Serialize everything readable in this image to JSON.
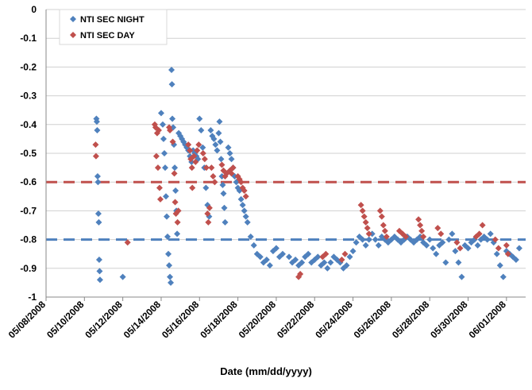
{
  "chart_data": {
    "type": "scatter",
    "title": "",
    "xlabel": "Date (mm/dd/yyyy)",
    "ylabel": "",
    "x_ticks": [
      "05/08/2008",
      "05/10/2008",
      "05/12/2008",
      "05/14/2008",
      "05/16/2008",
      "05/18/2008",
      "05/20/2008",
      "05/22/2008",
      "05/24/2008",
      "05/26/2008",
      "05/28/2008",
      "05/30/2008",
      "06/01/2008"
    ],
    "xlim": [
      "2008-05-08",
      "2008-06-02"
    ],
    "y_ticks": [
      "0",
      "-0.1",
      "-0.2",
      "-0.3",
      "-0.4",
      "-0.5",
      "-0.6",
      "-0.7",
      "-0.8",
      "-0.9",
      "-1"
    ],
    "ylim": [
      -1,
      0
    ],
    "grid": "horizontal",
    "legend_position": "top-left",
    "reference_lines": [
      {
        "y": -0.6,
        "color": "#c0504d",
        "style": "dashed"
      },
      {
        "y": -0.8,
        "color": "#4f81bd",
        "style": "dashed"
      }
    ],
    "series": [
      {
        "name": "NTI SEC NIGHT",
        "color": "#4f81bd",
        "marker": "diamond",
        "points": [
          [
            "2008-05-10T15:00",
            -0.38
          ],
          [
            "2008-05-10T15:30",
            -0.39
          ],
          [
            "2008-05-10T16:00",
            -0.42
          ],
          [
            "2008-05-10T16:30",
            -0.58
          ],
          [
            "2008-05-10T17:00",
            -0.6
          ],
          [
            "2008-05-10T17:30",
            -0.71
          ],
          [
            "2008-05-10T18:00",
            -0.74
          ],
          [
            "2008-05-10T18:30",
            -0.87
          ],
          [
            "2008-05-10T19:00",
            -0.91
          ],
          [
            "2008-05-10T19:30",
            -0.94
          ],
          [
            "2008-05-12T00:00",
            -0.93
          ],
          [
            "2008-05-14T00:00",
            -0.36
          ],
          [
            "2008-05-14T02:00",
            -0.4
          ],
          [
            "2008-05-14T03:00",
            -0.45
          ],
          [
            "2008-05-14T04:00",
            -0.5
          ],
          [
            "2008-05-14T05:00",
            -0.55
          ],
          [
            "2008-05-14T06:00",
            -0.65
          ],
          [
            "2008-05-14T07:00",
            -0.72
          ],
          [
            "2008-05-14T08:00",
            -0.79
          ],
          [
            "2008-05-14T09:00",
            -0.85
          ],
          [
            "2008-05-14T10:00",
            -0.89
          ],
          [
            "2008-05-14T11:00",
            -0.93
          ],
          [
            "2008-05-14T12:00",
            -0.95
          ],
          [
            "2008-05-14T13:00",
            -0.21
          ],
          [
            "2008-05-14T13:30",
            -0.26
          ],
          [
            "2008-05-14T14:00",
            -0.38
          ],
          [
            "2008-05-14T15:00",
            -0.41
          ],
          [
            "2008-05-14T16:00",
            -0.47
          ],
          [
            "2008-05-14T17:00",
            -0.55
          ],
          [
            "2008-05-14T18:00",
            -0.63
          ],
          [
            "2008-05-14T19:00",
            -0.7
          ],
          [
            "2008-05-14T20:00",
            -0.78
          ],
          [
            "2008-05-14T22:00",
            -0.43
          ],
          [
            "2008-05-15T00:00",
            -0.44
          ],
          [
            "2008-05-15T02:00",
            -0.45
          ],
          [
            "2008-05-15T04:00",
            -0.46
          ],
          [
            "2008-05-15T06:00",
            -0.47
          ],
          [
            "2008-05-15T08:00",
            -0.48
          ],
          [
            "2008-05-15T10:00",
            -0.49
          ],
          [
            "2008-05-15T12:00",
            -0.51
          ],
          [
            "2008-05-15T14:00",
            -0.53
          ],
          [
            "2008-05-15T16:00",
            -0.49
          ],
          [
            "2008-05-15T18:00",
            -0.5
          ],
          [
            "2008-05-15T20:00",
            -0.51
          ],
          [
            "2008-05-15T22:00",
            -0.52
          ],
          [
            "2008-05-16T00:00",
            -0.38
          ],
          [
            "2008-05-16T02:00",
            -0.42
          ],
          [
            "2008-05-16T04:00",
            -0.48
          ],
          [
            "2008-05-16T06:00",
            -0.55
          ],
          [
            "2008-05-16T08:00",
            -0.62
          ],
          [
            "2008-05-16T10:00",
            -0.68
          ],
          [
            "2008-05-16T12:00",
            -0.72
          ],
          [
            "2008-05-16T14:00",
            -0.42
          ],
          [
            "2008-05-16T16:00",
            -0.44
          ],
          [
            "2008-05-16T18:00",
            -0.45
          ],
          [
            "2008-05-16T20:00",
            -0.47
          ],
          [
            "2008-05-16T22:00",
            -0.49
          ],
          [
            "2008-05-17T00:00",
            -0.43
          ],
          [
            "2008-05-17T01:00",
            -0.39
          ],
          [
            "2008-05-17T02:00",
            -0.46
          ],
          [
            "2008-05-17T03:00",
            -0.52
          ],
          [
            "2008-05-17T04:00",
            -0.58
          ],
          [
            "2008-05-17T05:00",
            -0.61
          ],
          [
            "2008-05-17T06:00",
            -0.64
          ],
          [
            "2008-05-17T07:00",
            -0.69
          ],
          [
            "2008-05-17T08:00",
            -0.74
          ],
          [
            "2008-05-17T12:00",
            -0.48
          ],
          [
            "2008-05-17T14:00",
            -0.5
          ],
          [
            "2008-05-17T16:00",
            -0.52
          ],
          [
            "2008-05-17T18:00",
            -0.55
          ],
          [
            "2008-05-17T20:00",
            -0.58
          ],
          [
            "2008-05-17T22:00",
            -0.6
          ],
          [
            "2008-05-18T00:00",
            -0.62
          ],
          [
            "2008-05-18T02:00",
            -0.63
          ],
          [
            "2008-05-18T04:00",
            -0.66
          ],
          [
            "2008-05-18T06:00",
            -0.68
          ],
          [
            "2008-05-18T08:00",
            -0.7
          ],
          [
            "2008-05-18T10:00",
            -0.72
          ],
          [
            "2008-05-18T12:00",
            -0.74
          ],
          [
            "2008-05-18T16:00",
            -0.79
          ],
          [
            "2008-05-18T20:00",
            -0.82
          ],
          [
            "2008-05-19T00:00",
            -0.85
          ],
          [
            "2008-05-19T04:00",
            -0.86
          ],
          [
            "2008-05-19T08:00",
            -0.88
          ],
          [
            "2008-05-19T12:00",
            -0.87
          ],
          [
            "2008-05-19T16:00",
            -0.89
          ],
          [
            "2008-05-19T20:00",
            -0.84
          ],
          [
            "2008-05-20T00:00",
            -0.83
          ],
          [
            "2008-05-20T04:00",
            -0.86
          ],
          [
            "2008-05-20T08:00",
            -0.85
          ],
          [
            "2008-05-20T16:00",
            -0.86
          ],
          [
            "2008-05-20T20:00",
            -0.88
          ],
          [
            "2008-05-21T00:00",
            -0.87
          ],
          [
            "2008-05-21T04:00",
            -0.89
          ],
          [
            "2008-05-21T08:00",
            -0.88
          ],
          [
            "2008-05-21T12:00",
            -0.86
          ],
          [
            "2008-05-21T16:00",
            -0.85
          ],
          [
            "2008-05-21T20:00",
            -0.88
          ],
          [
            "2008-05-22T00:00",
            -0.87
          ],
          [
            "2008-05-22T04:00",
            -0.86
          ],
          [
            "2008-05-22T08:00",
            -0.89
          ],
          [
            "2008-05-22T12:00",
            -0.88
          ],
          [
            "2008-05-22T16:00",
            -0.9
          ],
          [
            "2008-05-22T20:00",
            -0.88
          ],
          [
            "2008-05-23T00:00",
            -0.86
          ],
          [
            "2008-05-23T04:00",
            -0.87
          ],
          [
            "2008-05-23T08:00",
            -0.88
          ],
          [
            "2008-05-23T12:00",
            -0.9
          ],
          [
            "2008-05-23T16:00",
            -0.89
          ],
          [
            "2008-05-23T20:00",
            -0.86
          ],
          [
            "2008-05-24T00:00",
            -0.84
          ],
          [
            "2008-05-24T04:00",
            -0.81
          ],
          [
            "2008-05-24T08:00",
            -0.79
          ],
          [
            "2008-05-24T12:00",
            -0.8
          ],
          [
            "2008-05-24T16:00",
            -0.82
          ],
          [
            "2008-05-24T20:00",
            -0.8
          ],
          [
            "2008-05-25T00:00",
            -0.78
          ],
          [
            "2008-05-25T04:00",
            -0.8
          ],
          [
            "2008-05-25T08:00",
            -0.82
          ],
          [
            "2008-05-25T12:00",
            -0.79
          ],
          [
            "2008-05-25T16:00",
            -0.8
          ],
          [
            "2008-05-25T20:00",
            -0.81
          ],
          [
            "2008-05-26T00:00",
            -0.8
          ],
          [
            "2008-05-26T04:00",
            -0.79
          ],
          [
            "2008-05-26T08:00",
            -0.8
          ],
          [
            "2008-05-26T12:00",
            -0.81
          ],
          [
            "2008-05-26T16:00",
            -0.8
          ],
          [
            "2008-05-26T20:00",
            -0.79
          ],
          [
            "2008-05-27T00:00",
            -0.8
          ],
          [
            "2008-05-27T04:00",
            -0.81
          ],
          [
            "2008-05-27T08:00",
            -0.8
          ],
          [
            "2008-05-27T12:00",
            -0.79
          ],
          [
            "2008-05-27T16:00",
            -0.81
          ],
          [
            "2008-05-27T20:00",
            -0.82
          ],
          [
            "2008-05-28T00:00",
            -0.8
          ],
          [
            "2008-05-28T04:00",
            -0.83
          ],
          [
            "2008-05-28T08:00",
            -0.85
          ],
          [
            "2008-05-28T12:00",
            -0.82
          ],
          [
            "2008-05-28T16:00",
            -0.81
          ],
          [
            "2008-05-28T20:00",
            -0.88
          ],
          [
            "2008-05-29T00:00",
            -0.8
          ],
          [
            "2008-05-29T04:00",
            -0.78
          ],
          [
            "2008-05-29T08:00",
            -0.84
          ],
          [
            "2008-05-29T12:00",
            -0.88
          ],
          [
            "2008-05-29T16:00",
            -0.93
          ],
          [
            "2008-05-29T20:00",
            -0.82
          ],
          [
            "2008-05-30T00:00",
            -0.83
          ],
          [
            "2008-05-30T04:00",
            -0.81
          ],
          [
            "2008-05-30T08:00",
            -0.8
          ],
          [
            "2008-05-30T12:00",
            -0.82
          ],
          [
            "2008-05-30T16:00",
            -0.8
          ],
          [
            "2008-05-30T20:00",
            -0.79
          ],
          [
            "2008-05-31T00:00",
            -0.8
          ],
          [
            "2008-05-31T04:00",
            -0.78
          ],
          [
            "2008-05-31T08:00",
            -0.81
          ],
          [
            "2008-05-31T12:00",
            -0.85
          ],
          [
            "2008-05-31T16:00",
            -0.89
          ],
          [
            "2008-05-31T20:00",
            -0.93
          ],
          [
            "2008-06-01T00:00",
            -0.84
          ],
          [
            "2008-06-01T04:00",
            -0.85
          ],
          [
            "2008-06-01T08:00",
            -0.86
          ],
          [
            "2008-06-01T12:00",
            -0.87
          ],
          [
            "2008-06-01T16:00",
            -0.83
          ]
        ]
      },
      {
        "name": "NTI SEC DAY",
        "color": "#c0504d",
        "marker": "diamond",
        "points": [
          [
            "2008-05-10T14:00",
            -0.47
          ],
          [
            "2008-05-10T14:30",
            -0.51
          ],
          [
            "2008-05-12T06:00",
            -0.81
          ],
          [
            "2008-05-13T18:00",
            -0.51
          ],
          [
            "2008-05-13T20:00",
            -0.55
          ],
          [
            "2008-05-13T22:00",
            -0.62
          ],
          [
            "2008-05-13T23:00",
            -0.66
          ],
          [
            "2008-05-13T16:00",
            -0.4
          ],
          [
            "2008-05-13T17:00",
            -0.41
          ],
          [
            "2008-05-13T19:00",
            -0.43
          ],
          [
            "2008-05-13T21:00",
            -0.42
          ],
          [
            "2008-05-14T10:00",
            -0.41
          ],
          [
            "2008-05-14T11:00",
            -0.42
          ],
          [
            "2008-05-14T14:30",
            -0.46
          ],
          [
            "2008-05-14T16:30",
            -0.57
          ],
          [
            "2008-05-14T17:30",
            -0.67
          ],
          [
            "2008-05-14T18:30",
            -0.71
          ],
          [
            "2008-05-14T20:30",
            -0.74
          ],
          [
            "2008-05-14T21:30",
            -0.7
          ],
          [
            "2008-05-15T10:00",
            -0.47
          ],
          [
            "2008-05-15T12:00",
            -0.49
          ],
          [
            "2008-05-15T13:00",
            -0.52
          ],
          [
            "2008-05-15T14:30",
            -0.55
          ],
          [
            "2008-05-15T15:00",
            -0.62
          ],
          [
            "2008-05-15T17:00",
            -0.51
          ],
          [
            "2008-05-15T19:00",
            -0.53
          ],
          [
            "2008-05-15T21:00",
            -0.49
          ],
          [
            "2008-05-15T23:00",
            -0.47
          ],
          [
            "2008-05-16T04:30",
            -0.5
          ],
          [
            "2008-05-16T06:30",
            -0.52
          ],
          [
            "2008-05-16T08:30",
            -0.55
          ],
          [
            "2008-05-16T10:00",
            -0.71
          ],
          [
            "2008-05-16T11:00",
            -0.74
          ],
          [
            "2008-05-16T12:30",
            -0.69
          ],
          [
            "2008-05-16T15:00",
            -0.55
          ],
          [
            "2008-05-16T17:00",
            -0.58
          ],
          [
            "2008-05-16T19:00",
            -0.6
          ],
          [
            "2008-05-17T04:00",
            -0.54
          ],
          [
            "2008-05-17T06:00",
            -0.56
          ],
          [
            "2008-05-17T08:00",
            -0.58
          ],
          [
            "2008-05-17T10:00",
            -0.57
          ],
          [
            "2008-05-17T14:00",
            -0.56
          ],
          [
            "2008-05-17T16:00",
            -0.57
          ],
          [
            "2008-05-17T18:00",
            -0.55
          ],
          [
            "2008-05-18T00:00",
            -0.58
          ],
          [
            "2008-05-18T02:00",
            -0.59
          ],
          [
            "2008-05-18T04:00",
            -0.6
          ],
          [
            "2008-05-18T06:00",
            -0.62
          ],
          [
            "2008-05-18T08:00",
            -0.63
          ],
          [
            "2008-05-18T10:00",
            -0.65
          ],
          [
            "2008-05-21T04:00",
            -0.93
          ],
          [
            "2008-05-21T06:00",
            -0.92
          ],
          [
            "2008-05-22T10:00",
            -0.86
          ],
          [
            "2008-05-22T14:00",
            -0.85
          ],
          [
            "2008-05-23T10:00",
            -0.87
          ],
          [
            "2008-05-23T14:00",
            -0.85
          ],
          [
            "2008-05-24T10:00",
            -0.68
          ],
          [
            "2008-05-24T12:00",
            -0.7
          ],
          [
            "2008-05-24T14:00",
            -0.72
          ],
          [
            "2008-05-24T16:00",
            -0.74
          ],
          [
            "2008-05-24T18:00",
            -0.76
          ],
          [
            "2008-05-24T20:00",
            -0.78
          ],
          [
            "2008-05-25T10:00",
            -0.7
          ],
          [
            "2008-05-25T12:00",
            -0.72
          ],
          [
            "2008-05-25T14:00",
            -0.75
          ],
          [
            "2008-05-25T16:00",
            -0.77
          ],
          [
            "2008-05-25T18:00",
            -0.79
          ],
          [
            "2008-05-26T10:00",
            -0.77
          ],
          [
            "2008-05-26T14:00",
            -0.78
          ],
          [
            "2008-05-26T18:00",
            -0.79
          ],
          [
            "2008-05-27T10:00",
            -0.73
          ],
          [
            "2008-05-27T12:00",
            -0.75
          ],
          [
            "2008-05-27T14:00",
            -0.77
          ],
          [
            "2008-05-27T16:00",
            -0.79
          ],
          [
            "2008-05-28T10:00",
            -0.76
          ],
          [
            "2008-05-28T14:00",
            -0.78
          ],
          [
            "2008-05-29T10:00",
            -0.81
          ],
          [
            "2008-05-29T14:00",
            -0.83
          ],
          [
            "2008-05-30T10:00",
            -0.79
          ],
          [
            "2008-05-30T14:00",
            -0.78
          ],
          [
            "2008-05-30T18:00",
            -0.75
          ],
          [
            "2008-05-31T10:00",
            -0.8
          ],
          [
            "2008-05-31T14:00",
            -0.83
          ],
          [
            "2008-06-01T00:00",
            -0.82
          ],
          [
            "2008-06-01T02:00",
            -0.85
          ]
        ]
      }
    ]
  }
}
